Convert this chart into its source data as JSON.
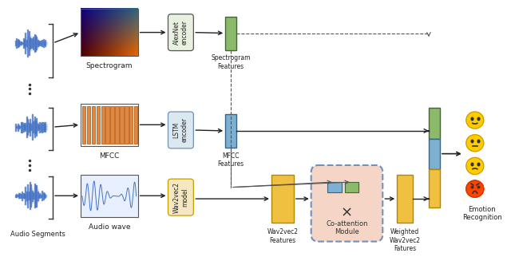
{
  "figsize": [
    6.4,
    3.22
  ],
  "dpi": 100,
  "bg_color": "#ffffff",
  "components": {
    "audio_segments_label": "Audio Segments",
    "spectrogram_label": "Spectrogram",
    "mfcc_label": "MFCC",
    "audio_wave_label": "Audio wave",
    "alexnet_label": "AlexNet\nencoder",
    "lstm_label": "LSTM\nencoder",
    "wav2vec_model_label": "Wav2vec2\nmodel",
    "spectrogram_features_label": "Spectrogram\nFeatures",
    "mfcc_features_label": "MFCC\nFeatures",
    "wav2vec_features_label": "Wav2vec2\nFeatures",
    "co_attention_label": "Co-attention\nModule",
    "weighted_label": "Weighted\nWav2vec2\nFatures",
    "emotion_label": "Emotion\nRecognition"
  },
  "colors": {
    "alexnet_box": "#e8f0e0",
    "lstm_box": "#dce8f0",
    "wav2vec_model_box": "#f5e8c0",
    "green_feature": "#8aba6a",
    "blue_feature": "#7eb0d0",
    "yellow_feature": "#f0c040",
    "yellow_feature2": "#f0c040",
    "co_attention_bg": "#f5d5c5",
    "co_attention_border": "#7090c0",
    "concat_box": "#ffffff",
    "arrow_color": "#222222",
    "dashed_color": "#555555",
    "mfcc_bar_color": "#e08840",
    "mfcc_bar_border": "#c07030"
  }
}
